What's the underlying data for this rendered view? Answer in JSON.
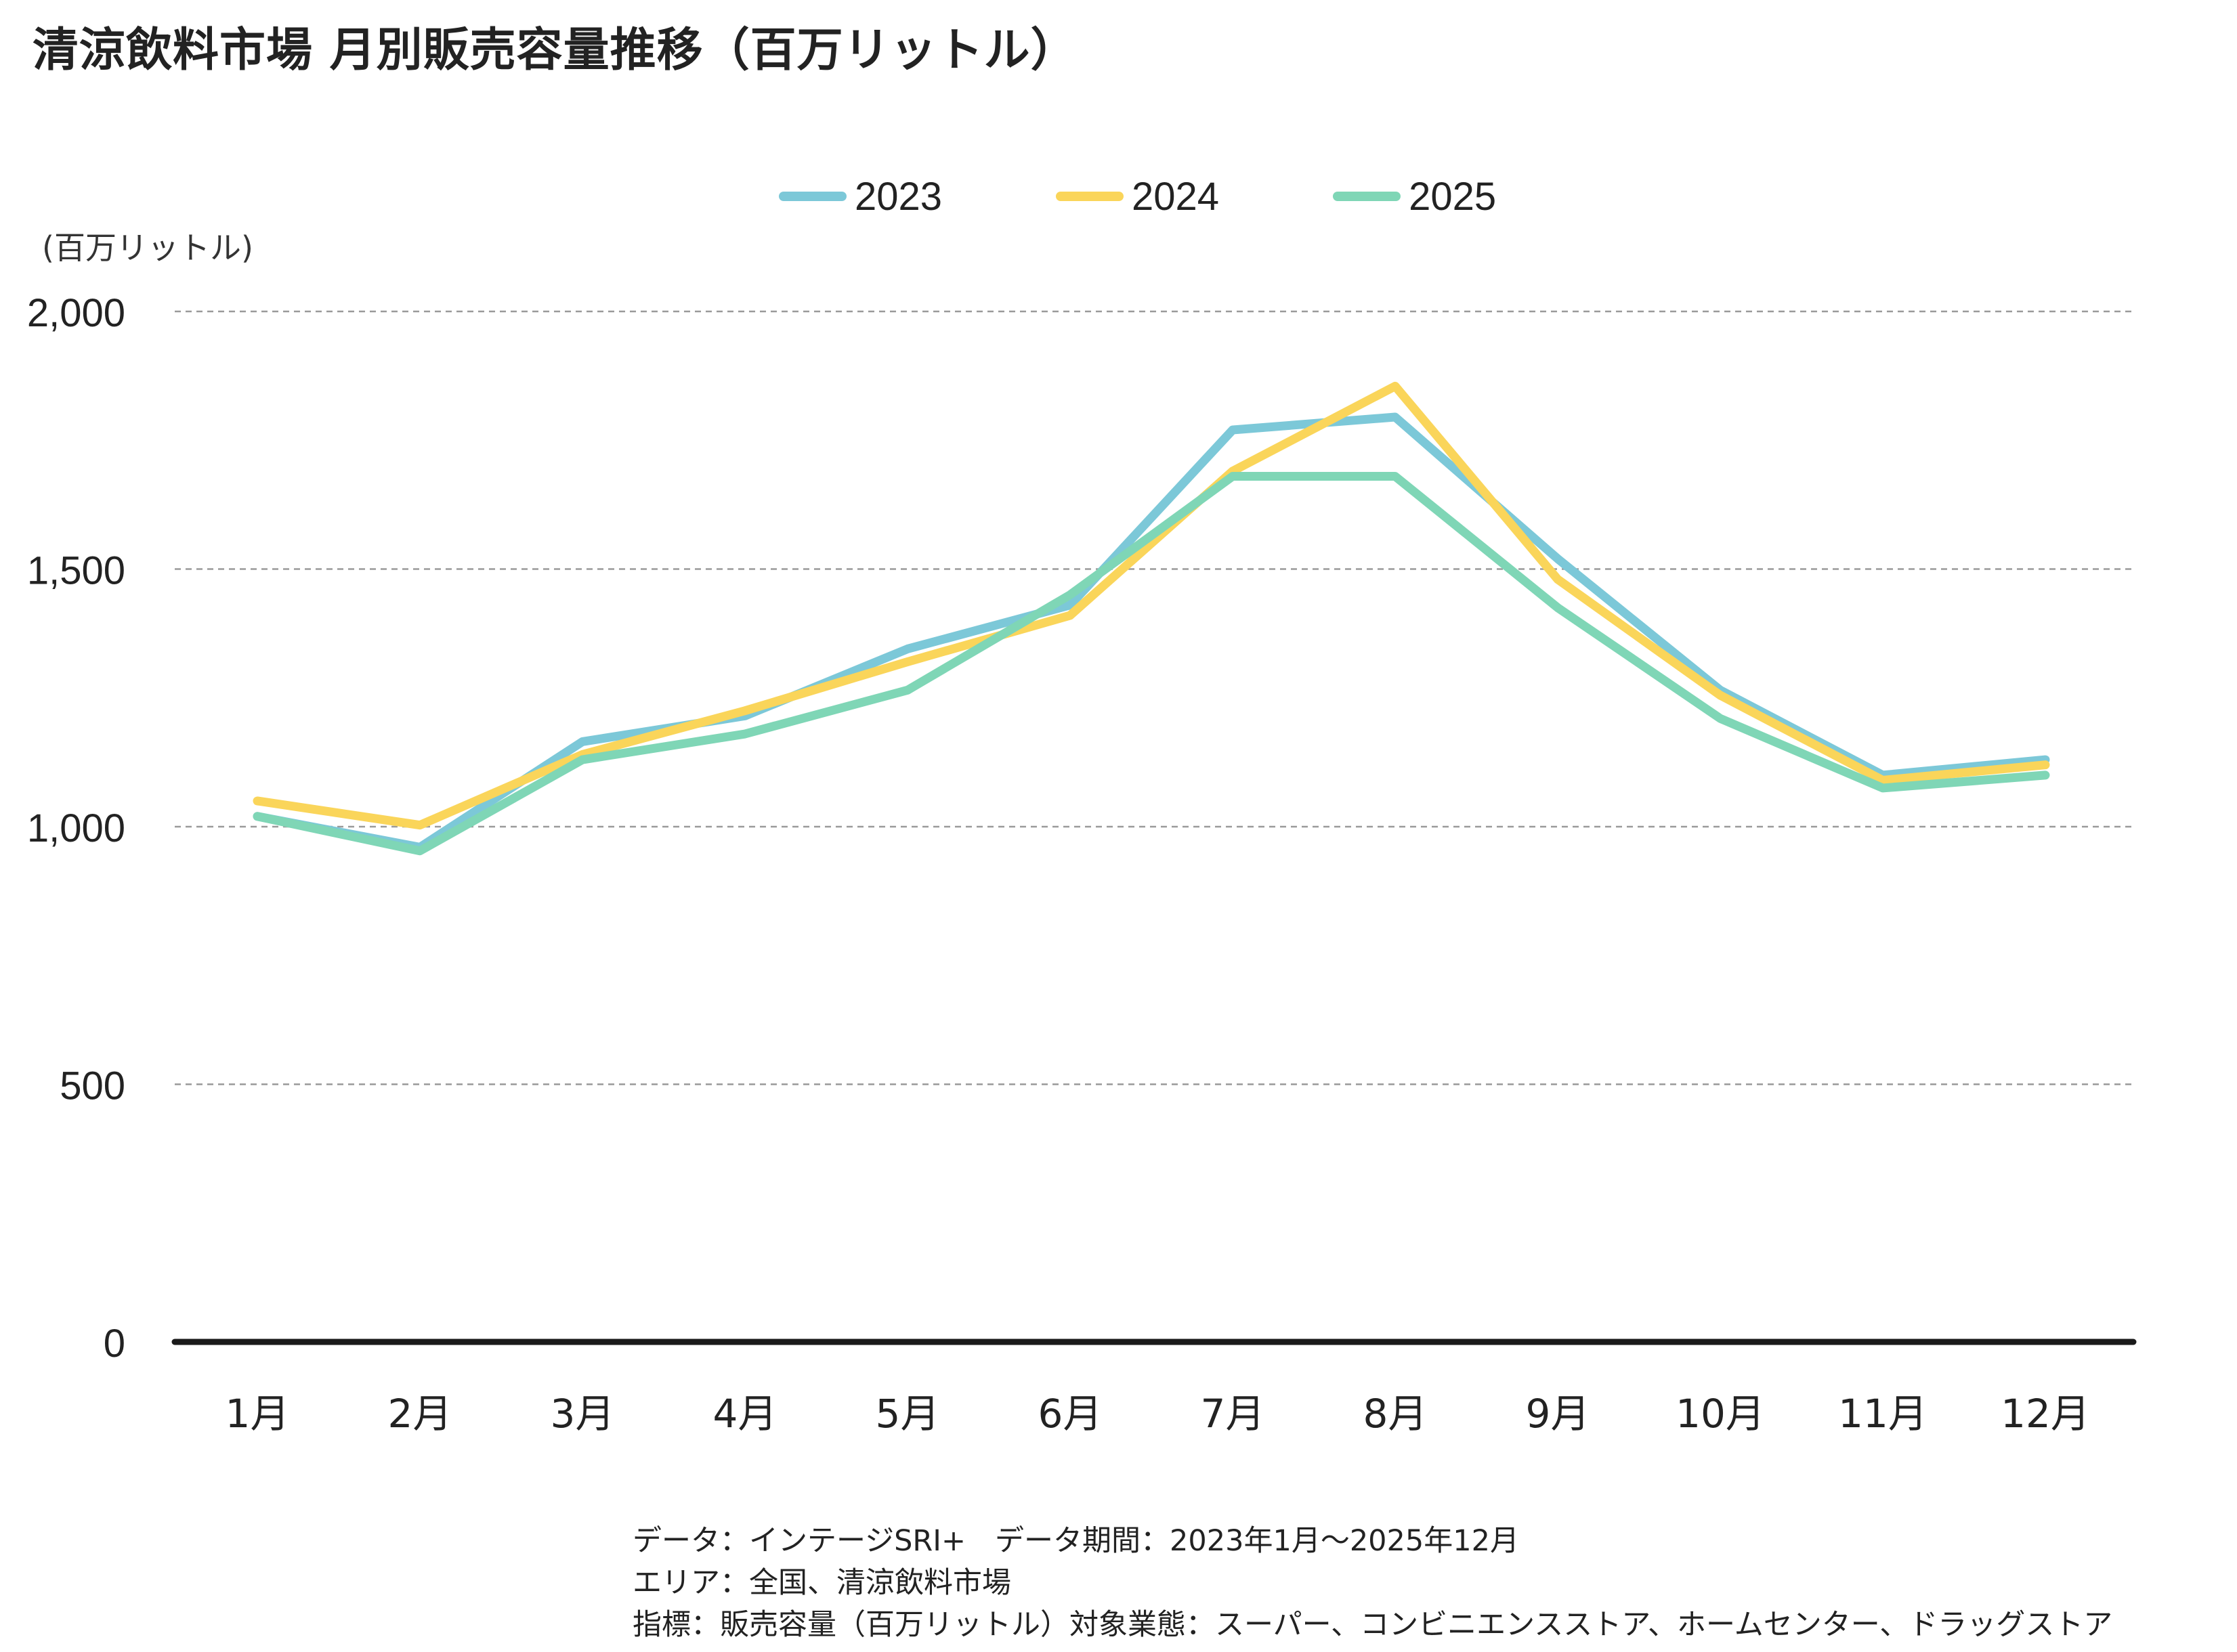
{
  "chart_data": {
    "type": "line",
    "title": "清涼飲料市場 月別販売容量推移（百万リットル）",
    "ylabel": "(百万リットル)",
    "xlabel": "",
    "categories": [
      "1月",
      "2月",
      "3月",
      "4月",
      "5月",
      "6月",
      "7月",
      "8月",
      "9月",
      "10月",
      "11月",
      "12月"
    ],
    "ylim": [
      0,
      2000
    ],
    "yticks": [
      0,
      500,
      1000,
      1500,
      2000
    ],
    "ytick_labels": [
      "0",
      "500",
      "1,000",
      "1,500",
      "2,000"
    ],
    "grid": true,
    "legend_position": "top-center",
    "series": [
      {
        "name": "2023",
        "color": "#7cc8d8",
        "values": [
          1020,
          960,
          1165,
          1215,
          1345,
          1430,
          1770,
          1795,
          1520,
          1265,
          1100,
          1130
        ]
      },
      {
        "name": "2024",
        "color": "#fad55a",
        "values": [
          1050,
          1003,
          1140,
          1225,
          1320,
          1410,
          1690,
          1855,
          1480,
          1255,
          1090,
          1120
        ]
      },
      {
        "name": "2025",
        "color": "#7fd6b6",
        "values": [
          1020,
          953,
          1130,
          1180,
          1265,
          1450,
          1680,
          1680,
          1425,
          1210,
          1075,
          1100
        ]
      }
    ]
  },
  "source": {
    "line1": "データ：インテージSRI+　データ期間：2023年1月～2025年12月",
    "line2": "エリア：全国、清涼飲料市場",
    "line3": "指標：販売容量（百万リットル）対象業態：スーパー、コンビニエンスストア、ホームセンター、ドラッグストア"
  }
}
